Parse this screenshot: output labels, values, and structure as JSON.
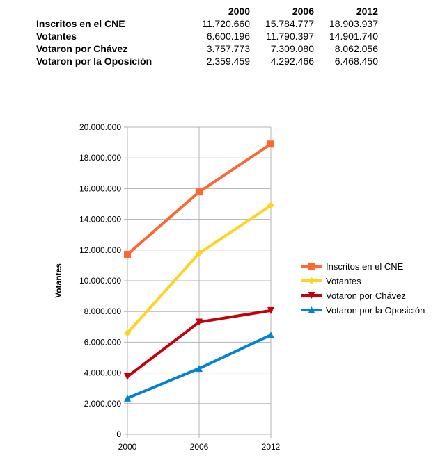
{
  "table": {
    "years": [
      "2000",
      "2006",
      "2012"
    ],
    "rows": [
      {
        "label": "Inscritos en el CNE",
        "values": [
          "11.720.660",
          "15.784.777",
          "18.903.937"
        ]
      },
      {
        "label": "Votantes",
        "values": [
          "6.600.196",
          "11.790.397",
          "14.901.740"
        ]
      },
      {
        "label": "Votaron por Chávez",
        "values": [
          "3.757.773",
          "7.309.080",
          "8.062.056"
        ]
      },
      {
        "label": "Votaron por la Oposición",
        "values": [
          "2.359.459",
          "4.292.466",
          "6.468.450"
        ]
      }
    ]
  },
  "chart_data": {
    "type": "line",
    "title": "",
    "xlabel": "",
    "ylabel": "Votantes",
    "x": [
      "2000",
      "2006",
      "2012"
    ],
    "ylim": [
      0,
      20000000
    ],
    "yticks": [
      0,
      2000000,
      4000000,
      6000000,
      8000000,
      10000000,
      12000000,
      14000000,
      16000000,
      18000000,
      20000000
    ],
    "ytick_labels": [
      "0",
      "2.000.000",
      "4.000.000",
      "6.000.000",
      "8.000.000",
      "10.000.000",
      "12.000.000",
      "14.000.000",
      "16.000.000",
      "18.000.000",
      "20.000.000"
    ],
    "grid": "horizontal",
    "legend_position": "right",
    "series": [
      {
        "name": "Inscritos en el CNE",
        "values": [
          11720660,
          15784777,
          18903937
        ],
        "color": "#ff6633",
        "marker": "square"
      },
      {
        "name": "Votantes",
        "values": [
          6600196,
          11790397,
          14901740
        ],
        "color": "#ffd320",
        "marker": "diamond"
      },
      {
        "name": "Votaron por Chávez",
        "values": [
          3757773,
          7309080,
          8062056
        ],
        "color": "#c5000b",
        "marker": "triangle-down"
      },
      {
        "name": "Votaron por la Oposición",
        "values": [
          2359459,
          4292466,
          6468450
        ],
        "color": "#0084d1",
        "marker": "triangle-up"
      }
    ]
  }
}
